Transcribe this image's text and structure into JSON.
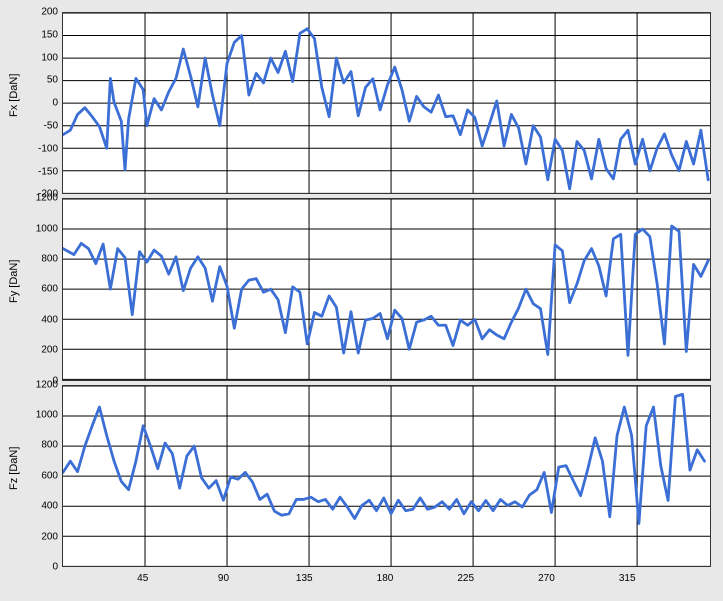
{
  "background_color": "#e8e8e8",
  "plot_bg": "#ffffff",
  "grid_color": "#000000",
  "border_color": "#333333",
  "line_color": "#3b6fd6",
  "line_width": 2.8,
  "font_family": "Arial, sans-serif",
  "label_fontsize": 11,
  "tick_fontsize": 10,
  "x_domain": [
    0,
    355
  ],
  "x_ticks": [
    45,
    90,
    135,
    180,
    225,
    270,
    315
  ],
  "charts": [
    {
      "id": "fx",
      "ylabel": "Fx [DaN]",
      "ylim": [
        -200,
        200
      ],
      "ytick_step": 50,
      "data": [
        [
          0,
          -70
        ],
        [
          4,
          -60
        ],
        [
          8,
          -25
        ],
        [
          12,
          -10
        ],
        [
          16,
          -30
        ],
        [
          20,
          -52
        ],
        [
          24,
          -100
        ],
        [
          26,
          55
        ],
        [
          28,
          2
        ],
        [
          32,
          -40
        ],
        [
          34,
          -148
        ],
        [
          36,
          -35
        ],
        [
          40,
          55
        ],
        [
          44,
          30
        ],
        [
          46,
          -50
        ],
        [
          50,
          10
        ],
        [
          54,
          -15
        ],
        [
          58,
          25
        ],
        [
          62,
          55
        ],
        [
          66,
          120
        ],
        [
          70,
          60
        ],
        [
          74,
          -8
        ],
        [
          78,
          100
        ],
        [
          82,
          18
        ],
        [
          86,
          -50
        ],
        [
          90,
          88
        ],
        [
          94,
          135
        ],
        [
          98,
          150
        ],
        [
          102,
          18
        ],
        [
          106,
          66
        ],
        [
          110,
          45
        ],
        [
          114,
          100
        ],
        [
          118,
          68
        ],
        [
          122,
          115
        ],
        [
          126,
          48
        ],
        [
          130,
          155
        ],
        [
          134,
          165
        ],
        [
          138,
          143
        ],
        [
          142,
          35
        ],
        [
          146,
          -30
        ],
        [
          150,
          100
        ],
        [
          154,
          45
        ],
        [
          158,
          70
        ],
        [
          162,
          -28
        ],
        [
          166,
          35
        ],
        [
          170,
          54
        ],
        [
          174,
          -15
        ],
        [
          178,
          40
        ],
        [
          182,
          80
        ],
        [
          186,
          30
        ],
        [
          190,
          -40
        ],
        [
          194,
          15
        ],
        [
          198,
          -8
        ],
        [
          202,
          -20
        ],
        [
          206,
          18
        ],
        [
          210,
          -30
        ],
        [
          214,
          -28
        ],
        [
          218,
          -70
        ],
        [
          222,
          -15
        ],
        [
          226,
          -32
        ],
        [
          230,
          -95
        ],
        [
          234,
          -46
        ],
        [
          238,
          5
        ],
        [
          242,
          -95
        ],
        [
          246,
          -25
        ],
        [
          250,
          -55
        ],
        [
          254,
          -135
        ],
        [
          258,
          -50
        ],
        [
          262,
          -75
        ],
        [
          266,
          -170
        ],
        [
          270,
          -80
        ],
        [
          274,
          -105
        ],
        [
          278,
          -190
        ],
        [
          282,
          -85
        ],
        [
          286,
          -105
        ],
        [
          290,
          -168
        ],
        [
          294,
          -80
        ],
        [
          298,
          -145
        ],
        [
          302,
          -168
        ],
        [
          306,
          -80
        ],
        [
          310,
          -60
        ],
        [
          314,
          -135
        ],
        [
          318,
          -80
        ],
        [
          322,
          -150
        ],
        [
          326,
          -100
        ],
        [
          330,
          -68
        ],
        [
          334,
          -115
        ],
        [
          338,
          -150
        ],
        [
          342,
          -85
        ],
        [
          346,
          -135
        ],
        [
          350,
          -60
        ],
        [
          354,
          -170
        ]
      ]
    },
    {
      "id": "fy",
      "ylabel": "Fy [DaN]",
      "ylim": [
        0,
        1200
      ],
      "ytick_step": 200,
      "data": [
        [
          0,
          870
        ],
        [
          6,
          830
        ],
        [
          10,
          905
        ],
        [
          14,
          870
        ],
        [
          18,
          770
        ],
        [
          22,
          900
        ],
        [
          26,
          600
        ],
        [
          30,
          870
        ],
        [
          34,
          810
        ],
        [
          38,
          430
        ],
        [
          42,
          850
        ],
        [
          46,
          780
        ],
        [
          50,
          860
        ],
        [
          54,
          820
        ],
        [
          58,
          700
        ],
        [
          62,
          815
        ],
        [
          66,
          590
        ],
        [
          70,
          740
        ],
        [
          74,
          815
        ],
        [
          78,
          740
        ],
        [
          82,
          520
        ],
        [
          86,
          750
        ],
        [
          90,
          620
        ],
        [
          94,
          340
        ],
        [
          98,
          600
        ],
        [
          102,
          660
        ],
        [
          106,
          670
        ],
        [
          110,
          580
        ],
        [
          114,
          600
        ],
        [
          118,
          530
        ],
        [
          122,
          310
        ],
        [
          126,
          615
        ],
        [
          130,
          580
        ],
        [
          134,
          235
        ],
        [
          138,
          445
        ],
        [
          142,
          420
        ],
        [
          146,
          555
        ],
        [
          150,
          480
        ],
        [
          154,
          175
        ],
        [
          158,
          450
        ],
        [
          162,
          175
        ],
        [
          166,
          395
        ],
        [
          170,
          405
        ],
        [
          174,
          438
        ],
        [
          178,
          270
        ],
        [
          182,
          460
        ],
        [
          186,
          405
        ],
        [
          190,
          200
        ],
        [
          194,
          380
        ],
        [
          198,
          395
        ],
        [
          202,
          420
        ],
        [
          206,
          360
        ],
        [
          210,
          360
        ],
        [
          214,
          225
        ],
        [
          218,
          395
        ],
        [
          222,
          360
        ],
        [
          226,
          398
        ],
        [
          230,
          270
        ],
        [
          234,
          330
        ],
        [
          238,
          295
        ],
        [
          242,
          270
        ],
        [
          246,
          380
        ],
        [
          250,
          475
        ],
        [
          254,
          600
        ],
        [
          258,
          503
        ],
        [
          262,
          470
        ],
        [
          266,
          165
        ],
        [
          270,
          895
        ],
        [
          274,
          855
        ],
        [
          278,
          510
        ],
        [
          282,
          635
        ],
        [
          286,
          790
        ],
        [
          290,
          870
        ],
        [
          294,
          755
        ],
        [
          298,
          555
        ],
        [
          302,
          935
        ],
        [
          306,
          965
        ],
        [
          310,
          160
        ],
        [
          314,
          965
        ],
        [
          318,
          1000
        ],
        [
          322,
          950
        ],
        [
          326,
          635
        ],
        [
          330,
          235
        ],
        [
          334,
          1020
        ],
        [
          338,
          985
        ],
        [
          342,
          185
        ],
        [
          346,
          765
        ],
        [
          350,
          685
        ],
        [
          354,
          790
        ]
      ]
    },
    {
      "id": "fz",
      "ylabel": "Fz [DaN]",
      "ylim": [
        0,
        1200
      ],
      "ytick_step": 200,
      "data": [
        [
          0,
          625
        ],
        [
          4,
          700
        ],
        [
          8,
          630
        ],
        [
          12,
          800
        ],
        [
          16,
          935
        ],
        [
          20,
          1060
        ],
        [
          24,
          870
        ],
        [
          28,
          700
        ],
        [
          32,
          565
        ],
        [
          36,
          510
        ],
        [
          40,
          700
        ],
        [
          44,
          935
        ],
        [
          48,
          800
        ],
        [
          52,
          650
        ],
        [
          56,
          820
        ],
        [
          60,
          750
        ],
        [
          64,
          520
        ],
        [
          68,
          735
        ],
        [
          72,
          800
        ],
        [
          76,
          590
        ],
        [
          80,
          520
        ],
        [
          84,
          570
        ],
        [
          88,
          440
        ],
        [
          92,
          595
        ],
        [
          96,
          580
        ],
        [
          100,
          625
        ],
        [
          104,
          560
        ],
        [
          108,
          445
        ],
        [
          112,
          480
        ],
        [
          116,
          367
        ],
        [
          120,
          340
        ],
        [
          124,
          350
        ],
        [
          128,
          445
        ],
        [
          132,
          445
        ],
        [
          136,
          460
        ],
        [
          140,
          430
        ],
        [
          144,
          445
        ],
        [
          148,
          380
        ],
        [
          152,
          460
        ],
        [
          156,
          395
        ],
        [
          160,
          318
        ],
        [
          164,
          405
        ],
        [
          168,
          440
        ],
        [
          172,
          370
        ],
        [
          176,
          455
        ],
        [
          180,
          350
        ],
        [
          184,
          440
        ],
        [
          188,
          370
        ],
        [
          192,
          380
        ],
        [
          196,
          455
        ],
        [
          200,
          380
        ],
        [
          204,
          394
        ],
        [
          208,
          430
        ],
        [
          212,
          380
        ],
        [
          216,
          445
        ],
        [
          220,
          350
        ],
        [
          224,
          430
        ],
        [
          228,
          370
        ],
        [
          232,
          438
        ],
        [
          236,
          370
        ],
        [
          240,
          445
        ],
        [
          244,
          405
        ],
        [
          248,
          430
        ],
        [
          252,
          395
        ],
        [
          256,
          475
        ],
        [
          260,
          510
        ],
        [
          264,
          625
        ],
        [
          268,
          358
        ],
        [
          272,
          660
        ],
        [
          276,
          670
        ],
        [
          280,
          570
        ],
        [
          284,
          470
        ],
        [
          288,
          650
        ],
        [
          292,
          855
        ],
        [
          296,
          700
        ],
        [
          300,
          330
        ],
        [
          304,
          870
        ],
        [
          308,
          1060
        ],
        [
          312,
          870
        ],
        [
          316,
          285
        ],
        [
          320,
          935
        ],
        [
          324,
          1060
        ],
        [
          328,
          670
        ],
        [
          332,
          438
        ],
        [
          336,
          1130
        ],
        [
          340,
          1145
        ],
        [
          344,
          640
        ],
        [
          348,
          775
        ],
        [
          352,
          700
        ]
      ]
    }
  ]
}
